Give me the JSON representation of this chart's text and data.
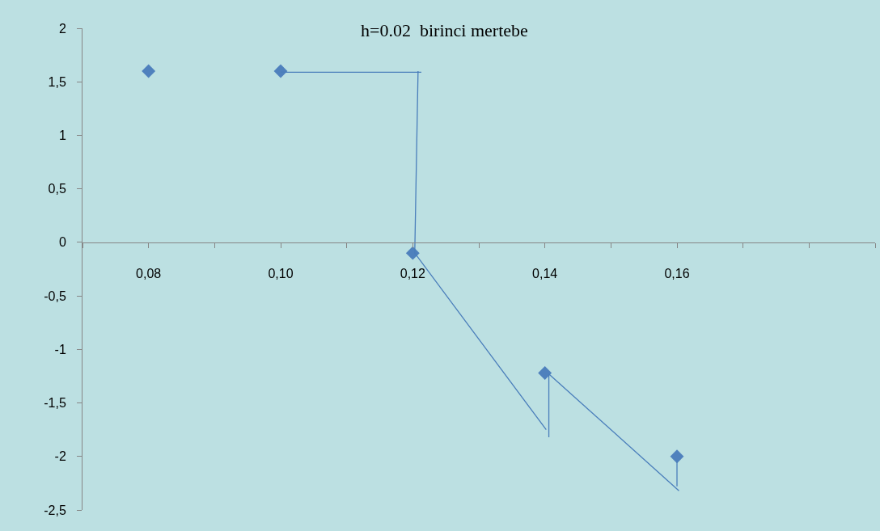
{
  "chart_data": {
    "type": "scatter",
    "title": "h=0.02  birinci mertebe",
    "x": [
      0.08,
      0.1,
      0.12,
      0.14,
      0.16
    ],
    "series": [
      {
        "color": "#4f81bd",
        "marker": "diamond",
        "values": [
          1.6,
          1.6,
          -0.1,
          -1.22,
          -2.0
        ]
      },
      {
        "type": "line",
        "color": "#4a7ebb",
        "marker": "none",
        "line_style": "solid",
        "x": [
          0.1,
          0.1213,
          null,
          0.1208,
          0.1203,
          0.1402,
          null,
          0.1406,
          0.1406,
          0.1603,
          null,
          0.16,
          0.16
        ],
        "values": [
          1.59,
          1.59,
          null,
          1.6,
          -0.1,
          -1.75,
          null,
          -1.82,
          -1.23,
          -2.32,
          null,
          -2.04,
          -2.28
        ]
      }
    ],
    "xlim": [
      0.07,
      0.19
    ],
    "xticks": [
      {
        "value": 0.07,
        "label": null
      },
      {
        "value": 0.08,
        "label": "0,08"
      },
      {
        "value": 0.09,
        "label": null
      },
      {
        "value": 0.1,
        "label": "0,10"
      },
      {
        "value": 0.11,
        "label": null
      },
      {
        "value": 0.12,
        "label": "0,12"
      },
      {
        "value": 0.13,
        "label": null
      },
      {
        "value": 0.14,
        "label": "0,14"
      },
      {
        "value": 0.15,
        "label": null
      },
      {
        "value": 0.16,
        "label": "0,16"
      },
      {
        "value": 0.17,
        "label": null
      },
      {
        "value": 0.18,
        "label": null
      },
      {
        "value": 0.19,
        "label": null
      }
    ],
    "ylim": [
      -2.5,
      2
    ],
    "yticks": [
      {
        "value": -2.5,
        "label": "-2,5"
      },
      -2,
      {
        "value": -1.5,
        "label": "-1,5"
      },
      -1,
      {
        "value": -0.5,
        "label": "-0,5"
      },
      0,
      {
        "value": 0.5,
        "label": "0,5"
      },
      1,
      {
        "value": 1.5,
        "label": "1,5"
      },
      2
    ],
    "grid": false
  }
}
